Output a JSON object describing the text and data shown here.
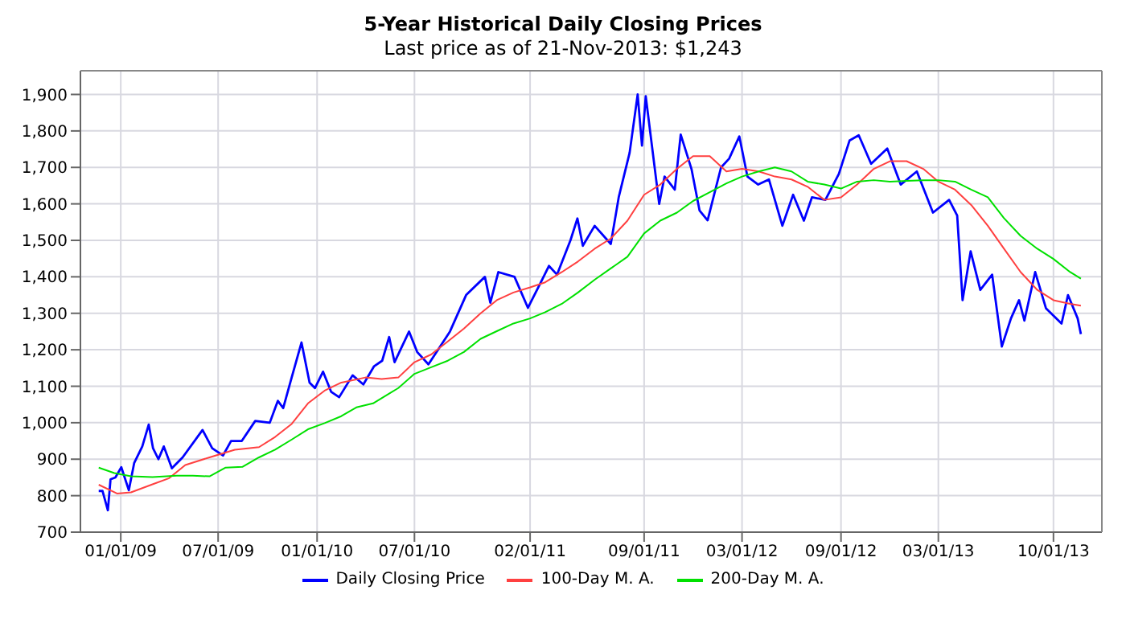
{
  "chart_data": {
    "type": "line",
    "title": "5-Year Historical Daily Closing Prices",
    "subtitle": "Last price as of 21-Nov-2013: $1,243",
    "xlim": [
      "2008-10-18",
      "2013-12-30"
    ],
    "xticks": [
      {
        "value": "2009-01-01",
        "label": "01/01/09"
      },
      {
        "value": "2009-07-01",
        "label": "07/01/09"
      },
      {
        "value": "2010-01-01",
        "label": "01/01/10"
      },
      {
        "value": "2010-07-01",
        "label": "07/01/10"
      },
      {
        "value": "2011-02-01",
        "label": "02/01/11"
      },
      {
        "value": "2011-09-01",
        "label": "09/01/11"
      },
      {
        "value": "2012-03-01",
        "label": "03/01/12"
      },
      {
        "value": "2012-09-01",
        "label": "09/01/12"
      },
      {
        "value": "2013-03-01",
        "label": "03/01/13"
      },
      {
        "value": "2013-10-01",
        "label": "10/01/13"
      }
    ],
    "ylim": [
      700,
      1965
    ],
    "yticks": [
      700,
      800,
      900,
      {
        "value": 1000,
        "label": "1,000"
      },
      {
        "value": 1100,
        "label": "1,100"
      },
      {
        "value": 1200,
        "label": "1,200"
      },
      {
        "value": 1300,
        "label": "1,300"
      },
      {
        "value": 1400,
        "label": "1,400"
      },
      {
        "value": 1500,
        "label": "1,500"
      },
      {
        "value": 1600,
        "label": "1,600"
      },
      {
        "value": 1700,
        "label": "1,700"
      },
      {
        "value": 1800,
        "label": "1,800"
      },
      {
        "value": 1900,
        "label": "1,900"
      }
    ],
    "grid": true,
    "legend": "bottom",
    "line_style": "solid",
    "series": [
      {
        "name": "Daily Closing Price",
        "color": "#0000ff",
        "x": [
          "2008-11-21",
          "2008-11-28",
          "2008-12-08",
          "2008-12-13",
          "2008-12-22",
          "2009-01-02",
          "2009-01-16",
          "2009-01-26",
          "2009-02-10",
          "2009-02-22",
          "2009-03-02",
          "2009-03-12",
          "2009-03-22",
          "2009-04-06",
          "2009-04-26",
          "2009-06-02",
          "2009-06-20",
          "2009-07-10",
          "2009-07-25",
          "2009-08-14",
          "2009-09-08",
          "2009-10-05",
          "2009-10-20",
          "2009-10-30",
          "2009-11-14",
          "2009-12-03",
          "2009-12-18",
          "2009-12-28",
          "2010-01-12",
          "2010-01-27",
          "2010-02-11",
          "2010-03-08",
          "2010-03-28",
          "2010-04-17",
          "2010-05-02",
          "2010-05-15",
          "2010-05-25",
          "2010-06-21",
          "2010-07-06",
          "2010-07-27",
          "2010-09-05",
          "2010-10-05",
          "2010-11-09",
          "2010-11-19",
          "2010-12-04",
          "2011-01-03",
          "2011-01-28",
          "2011-02-21",
          "2011-03-08",
          "2011-03-23",
          "2011-04-17",
          "2011-04-30",
          "2011-05-10",
          "2011-06-01",
          "2011-07-01",
          "2011-07-16",
          "2011-08-05",
          "2011-08-20",
          "2011-08-28",
          "2011-09-04",
          "2011-09-29",
          "2011-10-09",
          "2011-10-28",
          "2011-11-08",
          "2011-11-28",
          "2011-12-13",
          "2011-12-28",
          "2012-01-22",
          "2012-02-06",
          "2012-02-25",
          "2012-03-11",
          "2012-03-31",
          "2012-04-20",
          "2012-05-15",
          "2012-06-04",
          "2012-06-24",
          "2012-07-09",
          "2012-08-03",
          "2012-08-28",
          "2012-09-17",
          "2012-10-04",
          "2012-10-27",
          "2012-11-26",
          "2012-12-21",
          "2013-01-20",
          "2013-02-19",
          "2013-03-21",
          "2013-04-05",
          "2013-04-15",
          "2013-04-30",
          "2013-05-18",
          "2013-06-09",
          "2013-06-27",
          "2013-07-14",
          "2013-07-29",
          "2013-08-08",
          "2013-08-28",
          "2013-09-17",
          "2013-10-16",
          "2013-10-28",
          "2013-11-15",
          "2013-11-21"
        ],
        "values": [
          813,
          813,
          760,
          845,
          850,
          878,
          815,
          890,
          935,
          995,
          930,
          900,
          935,
          875,
          905,
          980,
          930,
          910,
          950,
          950,
          1005,
          1000,
          1060,
          1040,
          1120,
          1220,
          1110,
          1095,
          1140,
          1085,
          1070,
          1130,
          1105,
          1155,
          1170,
          1235,
          1166,
          1250,
          1194,
          1160,
          1250,
          1350,
          1400,
          1329,
          1413,
          1400,
          1315,
          1385,
          1430,
          1406,
          1500,
          1560,
          1485,
          1540,
          1490,
          1620,
          1740,
          1900,
          1760,
          1895,
          1600,
          1675,
          1639,
          1790,
          1696,
          1582,
          1555,
          1700,
          1724,
          1785,
          1675,
          1653,
          1667,
          1540,
          1625,
          1554,
          1618,
          1611,
          1682,
          1774,
          1788,
          1710,
          1752,
          1653,
          1689,
          1576,
          1611,
          1568,
          1336,
          1470,
          1364,
          1406,
          1209,
          1286,
          1336,
          1280,
          1413,
          1314,
          1272,
          1350,
          1286,
          1243
        ]
      },
      {
        "name": "100-Day M. A.",
        "color": "#ff4040",
        "x": [
          "2008-11-21",
          "2008-12-25",
          "2009-01-20",
          "2009-03-01",
          "2009-04-01",
          "2009-05-01",
          "2009-06-15",
          "2009-08-01",
          "2009-09-15",
          "2009-10-15",
          "2009-11-15",
          "2009-12-15",
          "2010-01-15",
          "2010-02-15",
          "2010-04-01",
          "2010-05-01",
          "2010-06-01",
          "2010-07-01",
          "2010-08-01",
          "2010-09-01",
          "2010-10-01",
          "2010-11-01",
          "2010-12-01",
          "2011-01-01",
          "2011-02-01",
          "2011-03-01",
          "2011-04-01",
          "2011-05-01",
          "2011-06-01",
          "2011-07-01",
          "2011-08-01",
          "2011-09-01",
          "2011-10-01",
          "2011-11-01",
          "2011-12-01",
          "2012-01-01",
          "2012-02-01",
          "2012-03-01",
          "2012-04-01",
          "2012-05-01",
          "2012-06-01",
          "2012-07-01",
          "2012-08-01",
          "2012-09-01",
          "2012-10-01",
          "2012-11-01",
          "2012-12-01",
          "2013-01-01",
          "2013-02-01",
          "2013-03-01",
          "2013-04-01",
          "2013-05-01",
          "2013-06-01",
          "2013-07-01",
          "2013-08-01",
          "2013-09-01",
          "2013-10-01",
          "2013-11-01",
          "2013-11-21"
        ],
        "values": [
          830,
          806,
          809,
          831,
          848,
          884,
          905,
          926,
          933,
          961,
          997,
          1053,
          1088,
          1110,
          1124,
          1120,
          1124,
          1166,
          1187,
          1223,
          1258,
          1300,
          1336,
          1357,
          1371,
          1385,
          1413,
          1442,
          1477,
          1505,
          1554,
          1625,
          1653,
          1696,
          1731,
          1731,
          1689,
          1696,
          1689,
          1675,
          1667,
          1647,
          1611,
          1618,
          1653,
          1696,
          1717,
          1717,
          1696,
          1661,
          1639,
          1597,
          1540,
          1477,
          1413,
          1364,
          1336,
          1326,
          1321
        ]
      },
      {
        "name": "200-Day M. A.",
        "color": "#00e000",
        "x": [
          "2008-11-21",
          "2008-12-20",
          "2009-01-20",
          "2009-03-01",
          "2009-04-15",
          "2009-05-15",
          "2009-06-15",
          "2009-07-15",
          "2009-08-15",
          "2009-09-15",
          "2009-10-15",
          "2009-11-15",
          "2009-12-15",
          "2010-01-15",
          "2010-02-15",
          "2010-03-15",
          "2010-04-15",
          "2010-05-15",
          "2010-06-01",
          "2010-07-01",
          "2010-08-01",
          "2010-09-01",
          "2010-10-01",
          "2010-11-01",
          "2010-12-01",
          "2011-01-01",
          "2011-02-01",
          "2011-03-01",
          "2011-04-01",
          "2011-05-01",
          "2011-06-01",
          "2011-07-01",
          "2011-08-01",
          "2011-09-01",
          "2011-10-01",
          "2011-11-01",
          "2011-12-01",
          "2012-01-01",
          "2012-02-01",
          "2012-03-01",
          "2012-04-01",
          "2012-05-01",
          "2012-06-01",
          "2012-07-01",
          "2012-08-01",
          "2012-09-01",
          "2012-10-01",
          "2012-11-01",
          "2012-12-01",
          "2013-01-01",
          "2013-02-01",
          "2013-03-01",
          "2013-04-01",
          "2013-05-01",
          "2013-06-01",
          "2013-07-01",
          "2013-08-01",
          "2013-09-01",
          "2013-10-01",
          "2013-11-01",
          "2013-11-21"
        ],
        "values": [
          877,
          862,
          853,
          851,
          855,
          855,
          853,
          877,
          879,
          905,
          926,
          954,
          982,
          999,
          1018,
          1042,
          1053,
          1080,
          1095,
          1134,
          1152,
          1170,
          1194,
          1230,
          1251,
          1272,
          1286,
          1303,
          1326,
          1357,
          1392,
          1423,
          1455,
          1519,
          1554,
          1576,
          1608,
          1632,
          1656,
          1675,
          1689,
          1700,
          1689,
          1661,
          1653,
          1642,
          1661,
          1665,
          1661,
          1663,
          1665,
          1665,
          1661,
          1639,
          1618,
          1561,
          1512,
          1477,
          1449,
          1413,
          1395
        ]
      }
    ]
  }
}
